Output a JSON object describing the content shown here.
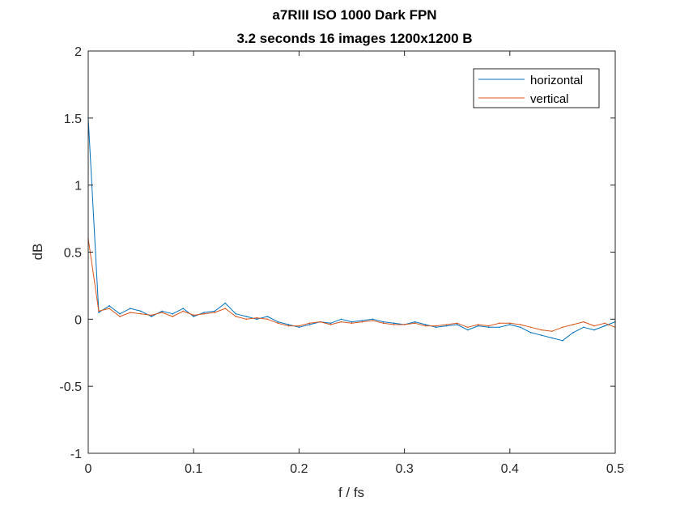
{
  "chart_data": {
    "type": "line",
    "title": [
      "a7RIII ISO 1000 Dark FPN",
      "3.2 seconds 16 images 1200x1200 B"
    ],
    "xlabel": "f / fs",
    "ylabel": "dB",
    "xlim": [
      0,
      0.5
    ],
    "ylim": [
      -1,
      2
    ],
    "x_ticks": [
      "0",
      "0.1",
      "0.2",
      "0.3",
      "0.4",
      "0.5"
    ],
    "y_ticks": [
      "-1",
      "-0.5",
      "0",
      "0.5",
      "1",
      "1.5",
      "2"
    ],
    "x_tick_values": [
      0,
      0.1,
      0.2,
      0.3,
      0.4,
      0.5
    ],
    "y_tick_values": [
      -1,
      -0.5,
      0,
      0.5,
      1,
      1.5,
      2
    ],
    "grid": false,
    "legend_position": "top-right",
    "series": [
      {
        "name": "horizontal",
        "color": "#0072BD",
        "x": [
          0,
          0.01,
          0.02,
          0.03,
          0.04,
          0.05,
          0.06,
          0.07,
          0.08,
          0.09,
          0.1,
          0.11,
          0.12,
          0.13,
          0.14,
          0.15,
          0.16,
          0.17,
          0.18,
          0.19,
          0.2,
          0.21,
          0.22,
          0.23,
          0.24,
          0.25,
          0.26,
          0.27,
          0.28,
          0.29,
          0.3,
          0.31,
          0.32,
          0.33,
          0.34,
          0.35,
          0.36,
          0.37,
          0.38,
          0.39,
          0.4,
          0.41,
          0.42,
          0.43,
          0.44,
          0.45,
          0.46,
          0.47,
          0.48,
          0.49,
          0.5
        ],
        "values": [
          1.5,
          0.05,
          0.1,
          0.04,
          0.08,
          0.06,
          0.02,
          0.06,
          0.04,
          0.08,
          0.02,
          0.05,
          0.06,
          0.12,
          0.04,
          0.02,
          0.0,
          0.02,
          -0.02,
          -0.04,
          -0.06,
          -0.04,
          -0.02,
          -0.03,
          0.0,
          -0.02,
          -0.01,
          0.0,
          -0.02,
          -0.03,
          -0.04,
          -0.02,
          -0.04,
          -0.06,
          -0.05,
          -0.04,
          -0.08,
          -0.05,
          -0.06,
          -0.06,
          -0.04,
          -0.06,
          -0.1,
          -0.12,
          -0.14,
          -0.16,
          -0.1,
          -0.06,
          -0.08,
          -0.05,
          -0.02
        ]
      },
      {
        "name": "vertical",
        "color": "#D95319",
        "x": [
          0,
          0.01,
          0.02,
          0.03,
          0.04,
          0.05,
          0.06,
          0.07,
          0.08,
          0.09,
          0.1,
          0.11,
          0.12,
          0.13,
          0.14,
          0.15,
          0.16,
          0.17,
          0.18,
          0.19,
          0.2,
          0.21,
          0.22,
          0.23,
          0.24,
          0.25,
          0.26,
          0.27,
          0.28,
          0.29,
          0.3,
          0.31,
          0.32,
          0.33,
          0.34,
          0.35,
          0.36,
          0.37,
          0.38,
          0.39,
          0.4,
          0.41,
          0.42,
          0.43,
          0.44,
          0.45,
          0.46,
          0.47,
          0.48,
          0.49,
          0.5
        ],
        "values": [
          0.6,
          0.06,
          0.08,
          0.02,
          0.05,
          0.04,
          0.03,
          0.05,
          0.02,
          0.06,
          0.03,
          0.04,
          0.05,
          0.08,
          0.02,
          0.0,
          0.01,
          0.0,
          -0.03,
          -0.05,
          -0.05,
          -0.03,
          -0.02,
          -0.04,
          -0.02,
          -0.03,
          -0.02,
          -0.01,
          -0.03,
          -0.04,
          -0.04,
          -0.03,
          -0.05,
          -0.05,
          -0.04,
          -0.03,
          -0.06,
          -0.04,
          -0.05,
          -0.03,
          -0.03,
          -0.04,
          -0.06,
          -0.08,
          -0.09,
          -0.06,
          -0.04,
          -0.02,
          -0.05,
          -0.03,
          -0.06
        ]
      }
    ]
  }
}
